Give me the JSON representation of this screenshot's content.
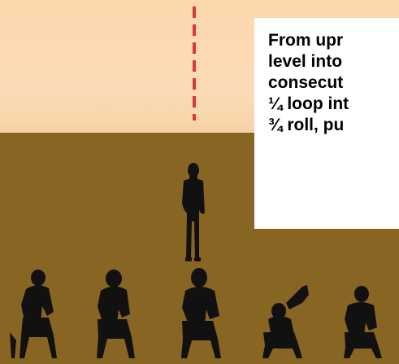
{
  "colors": {
    "sky": "#fcd7ae",
    "ground": "#896524",
    "plumb_line": "#d53a32",
    "silhouette": "#111111",
    "textbox_bg": "#ffffff"
  },
  "maneuver_text": {
    "lines": [
      "From upr",
      "level into",
      "consecut",
      "¼ loop int",
      "¾ roll, pu"
    ]
  },
  "figures": {
    "standing_person": "standing-person-silhouette",
    "seated_judges": 5
  }
}
